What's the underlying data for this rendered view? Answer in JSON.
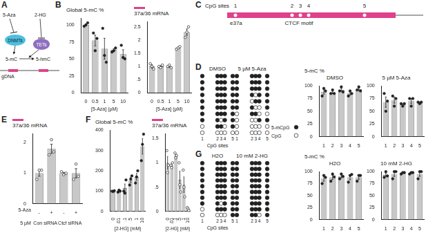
{
  "panel_labels": [
    "A",
    "B",
    "C",
    "D",
    "E",
    "F",
    "G"
  ],
  "diagram_A": {
    "inhibitors": [
      "5-Aza",
      "2-HG"
    ],
    "enzymes": [
      "DNMTs",
      "TETs"
    ],
    "marks": [
      "5-mC",
      "5-hmC"
    ],
    "substrate": "gDNA"
  },
  "diagram_C": {
    "sites_label": "CpG sites",
    "sites": [
      "1",
      "2",
      "3",
      "4",
      "5"
    ],
    "exon_label": "e37a",
    "motif_label": "CTCF motif"
  },
  "methylation_maps": [
    {
      "sites": [
        "1",
        "2",
        "3",
        "4",
        "5"
      ],
      "x_label": "CpG sites",
      "legend": [
        {
          "name": "5-mCpG",
          "marker": "filled_circle"
        },
        {
          "name": "CpG",
          "marker": "open_circle"
        }
      ],
      "conditions": [
        {
          "name": "DMSO",
          "rows": [
            [
              1,
              1,
              1,
              1,
              1
            ],
            [
              1,
              1,
              1,
              1,
              1
            ],
            [
              1,
              1,
              1,
              1,
              1
            ],
            [
              1,
              1,
              1,
              1,
              1
            ],
            [
              1,
              1,
              1,
              1,
              1
            ],
            [
              1,
              1,
              1,
              1,
              1
            ],
            [
              1,
              1,
              1,
              1,
              1
            ],
            [
              1,
              1,
              0,
              1,
              1
            ],
            [
              0,
              1,
              1,
              0,
              1
            ],
            [
              0,
              0,
              0,
              0,
              0
            ]
          ]
        },
        {
          "name": "5 µM 5-Aza",
          "rows": [
            [
              1,
              1,
              1,
              1,
              1
            ],
            [
              1,
              1,
              1,
              1,
              1
            ],
            [
              1,
              1,
              1,
              1,
              1
            ],
            [
              1,
              1,
              0,
              1,
              1
            ],
            [
              1,
              0,
              1,
              1,
              1
            ],
            [
              1,
              1,
              0,
              0,
              1
            ],
            [
              0,
              1,
              1,
              0,
              0
            ],
            [
              0,
              0,
              0,
              1,
              1
            ],
            [
              0,
              0,
              0,
              0,
              0
            ],
            [
              0,
              0,
              0,
              0,
              0
            ]
          ]
        }
      ]
    },
    {
      "sites": [
        "1",
        "2",
        "3",
        "4",
        "5"
      ],
      "x_label": "CpG sites",
      "conditions": [
        {
          "name": "H2O",
          "rows": [
            [
              1,
              1,
              1,
              1,
              1
            ],
            [
              1,
              1,
              1,
              1,
              1
            ],
            [
              1,
              1,
              1,
              1,
              1
            ],
            [
              1,
              1,
              1,
              1,
              1
            ],
            [
              1,
              1,
              1,
              1,
              1
            ],
            [
              1,
              1,
              1,
              1,
              1
            ],
            [
              1,
              1,
              1,
              1,
              1
            ],
            [
              1,
              1,
              0,
              1,
              1
            ],
            [
              0,
              1,
              1,
              1,
              1
            ],
            [
              0,
              0,
              0,
              0,
              1
            ]
          ]
        },
        {
          "name": "10 mM 2-HG",
          "rows": [
            [
              1,
              1,
              1,
              1,
              1
            ],
            [
              1,
              1,
              1,
              1,
              1
            ],
            [
              1,
              1,
              1,
              1,
              1
            ],
            [
              1,
              1,
              1,
              1,
              1
            ],
            [
              1,
              1,
              1,
              1,
              1
            ],
            [
              1,
              1,
              1,
              1,
              1
            ],
            [
              1,
              1,
              1,
              1,
              1
            ],
            [
              1,
              1,
              1,
              1,
              1
            ],
            [
              1,
              1,
              1,
              1,
              1
            ],
            [
              1,
              1,
              1,
              0,
              1
            ]
          ]
        }
      ]
    }
  ],
  "chart_data": [
    {
      "type": "bar",
      "title": "Global 5-mC %",
      "x_label": "[5-Aza] (µM)",
      "categories": [
        "0",
        "0.5",
        "1",
        "5",
        "10"
      ],
      "values": [
        100,
        77,
        65,
        63,
        57
      ],
      "errors": [
        1.5,
        7.9,
        15.3,
        1.8,
        6.4
      ],
      "points": [
        [
          98,
          100,
          103
        ],
        [
          88,
          62,
          80
        ],
        [
          95,
          55,
          45
        ],
        [
          60,
          62,
          66
        ],
        [
          70,
          52,
          50
        ]
      ],
      "color": "#c8c8c8",
      "marker": "filled_circle",
      "ylim": [
        0,
        110
      ],
      "yticks": [
        0,
        25,
        50,
        75,
        100
      ],
      "grid": false
    },
    {
      "type": "bar",
      "title": "37a/36 mRNA",
      "x_label": "[5-Aza] (µM)",
      "categories": [
        "0",
        "0.5",
        "1",
        "5",
        "10"
      ],
      "values": [
        1,
        1,
        1,
        1.7,
        2.3
      ],
      "errors": [
        0.06,
        0.03,
        0.03,
        0.03,
        0.12
      ],
      "points": [
        [
          1.1,
          1,
          0.9
        ],
        [
          1,
          0.95,
          1.05
        ],
        [
          1,
          1.05,
          0.95
        ],
        [
          1.65,
          1.7,
          1.75
        ],
        [
          2.1,
          2.3,
          2.5
        ]
      ],
      "color": "#c8c8c8",
      "marker": "open_circle",
      "ylim": [
        0,
        2.7
      ],
      "yticks": [
        0,
        {
          "value": 0.5,
          "label": ".5"
        },
        1,
        1.5,
        2,
        2.5
      ],
      "grid": false
    },
    {
      "type": "bar",
      "y_label": "5-mC %",
      "title": "DMSO",
      "categories": [
        "1",
        "2",
        "3",
        "4",
        "5"
      ],
      "values": [
        88,
        87,
        92,
        85,
        93
      ],
      "errors": [
        4.4,
        2.3,
        3.0,
        2.9,
        2.4
      ],
      "points": [
        [
          80,
          95,
          90
        ],
        [
          85,
          92,
          85
        ],
        [
          90,
          98,
          88
        ],
        [
          80,
          90,
          85
        ],
        [
          92,
          98,
          90
        ]
      ],
      "color": "#c8c8c8",
      "marker": "filled_circle",
      "ylim": [
        0,
        100
      ],
      "yticks": [
        0,
        25,
        50,
        75,
        100
      ],
      "grid": false
    },
    {
      "type": "bar",
      "title": "5 µM 5-Aza",
      "categories": [
        "1",
        "2",
        "3",
        "4",
        "5"
      ],
      "values": [
        68,
        72,
        63,
        70,
        67
      ],
      "errors": [
        10.1,
        6.0,
        1.7,
        5.0,
        1.0
      ],
      "points": [
        [
          85,
          50,
          70
        ],
        [
          80,
          60,
          75
        ],
        [
          65,
          60,
          65
        ],
        [
          75,
          60,
          75
        ],
        [
          68,
          65,
          68
        ]
      ],
      "color": "#c8c8c8",
      "marker": "filled_circle",
      "ylim": [
        0,
        100
      ],
      "yticks": [
        0,
        25,
        50,
        75,
        100
      ],
      "grid": false
    },
    {
      "type": "bar",
      "title": "37a/36 mRNA",
      "categories": [
        "-",
        "+",
        "-",
        "+"
      ],
      "groups": [
        "Con siRNA",
        "Ctcf siRNA"
      ],
      "group_label": [
        "5-Aza",
        "5 µM"
      ],
      "values": [
        1,
        1.8,
        1,
        1
      ],
      "errors": [
        0.1,
        0.15,
        0.03,
        0.15
      ],
      "points": [
        [
          0.8,
          1.1,
          1.1
        ],
        [
          1.6,
          2.1,
          1.7
        ],
        [
          1.05,
          0.95,
          1.0
        ],
        [
          0.8,
          1.3,
          0.9
        ]
      ],
      "color": "#c8c8c8",
      "marker": "open_circle",
      "ylim": [
        0,
        2.3
      ],
      "yticks": [
        0,
        1,
        2
      ],
      "grid": false
    },
    {
      "type": "bar",
      "title": "Global 5-mC %",
      "x_label": "[2-HG] (mM)",
      "categories": [
        "0",
        ".01",
        ".1",
        ".5",
        "1",
        "10"
      ],
      "values": [
        100,
        100,
        115,
        155,
        170,
        320
      ],
      "errors": [
        1.2,
        2.9,
        20.2,
        13.2,
        17.3,
        37.9
      ],
      "points": [
        [
          100,
          98,
          102
        ],
        [
          95,
          105,
          100
        ],
        [
          100,
          90,
          155
        ],
        [
          130,
          160,
          175
        ],
        [
          140,
          170,
          200
        ],
        [
          250,
          330,
          380
        ]
      ],
      "color": "#c8c8c8",
      "marker": "filled_circle",
      "ylim": [
        0,
        400
      ],
      "yticks": [
        0,
        100,
        200,
        300,
        400
      ],
      "grid": false
    },
    {
      "type": "bar",
      "title": "37a/36 mRNA",
      "x_label": "[2-HG] (mM)",
      "categories": [
        "0",
        ".01",
        ".1",
        ".5",
        "1",
        "10"
      ],
      "values": [
        1.0,
        0.95,
        1.15,
        0.65,
        0.55,
        0.05
      ],
      "errors": [
        0.13,
        0.03,
        0.03,
        0.18,
        0.16,
        0.02
      ],
      "points": [
        [
          1.25,
          0.8,
          0.95
        ],
        [
          0.95,
          0.9,
          1.0
        ],
        [
          1.2,
          1.1,
          1.15
        ],
        [
          1.0,
          0.55,
          0.4
        ],
        [
          0.85,
          0.5,
          0.3
        ],
        [
          0.08,
          0.05,
          0.02
        ]
      ],
      "color": "#c8c8c8",
      "marker": "open_circle",
      "ylim": [
        0,
        1.6
      ],
      "yticks": [
        0,
        {
          "value": 0.5,
          "label": ".5"
        },
        1,
        1.5
      ],
      "grid": false
    },
    {
      "type": "bar",
      "y_label": "5-mC %",
      "title": "H2O",
      "categories": [
        "1",
        "2",
        "3",
        "4",
        "5"
      ],
      "values": [
        85,
        88,
        90,
        88,
        88
      ],
      "errors": [
        5.0,
        4.4,
        2.9,
        4.9,
        4.0
      ],
      "points": [
        [
          75,
          92,
          88
        ],
        [
          80,
          95,
          89
        ],
        [
          85,
          95,
          90
        ],
        [
          78,
          92,
          94
        ],
        [
          80,
          92,
          92
        ]
      ],
      "color": "#c8c8c8",
      "marker": "filled_circle",
      "ylim": [
        0,
        100
      ],
      "yticks": [
        0,
        25,
        50,
        75,
        100
      ],
      "grid": false
    },
    {
      "type": "bar",
      "title": "10 mM 2-HG",
      "categories": [
        "1",
        "2",
        "3",
        "4",
        "5"
      ],
      "values": [
        93,
        95,
        97,
        97,
        95
      ],
      "errors": [
        3.6,
        5.0,
        1.0,
        1.0,
        5.0
      ],
      "points": [
        [
          88,
          100,
          91
        ],
        [
          85,
          100,
          100
        ],
        [
          95,
          98,
          98
        ],
        [
          95,
          98,
          98
        ],
        [
          85,
          100,
          100
        ]
      ],
      "color": "#c8c8c8",
      "marker": "filled_circle",
      "ylim": [
        0,
        100
      ],
      "yticks": [
        0,
        25,
        50,
        75,
        100
      ],
      "grid": false
    }
  ]
}
